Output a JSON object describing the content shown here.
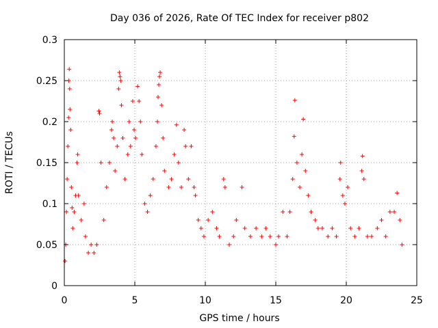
{
  "chart_data": {
    "type": "scatter",
    "title": "Day 036 of 2026, Rate Of TEC Index for receiver p802",
    "xlabel": "GPS time / hours",
    "ylabel": "ROTI / TECUs",
    "xlim": [
      0,
      25
    ],
    "ylim": [
      0,
      0.3
    ],
    "xticks": [
      0,
      5,
      10,
      15,
      20,
      25
    ],
    "xtick_labels": [
      "0",
      "5",
      "10",
      "15",
      "20",
      "25"
    ],
    "yticks": [
      0,
      0.05,
      0.1,
      0.15,
      0.2,
      0.25,
      0.3
    ],
    "ytick_labels": [
      "0",
      "0.05",
      "0.1",
      "0.15",
      "0.2",
      "0.25",
      "0.3"
    ],
    "grid": true,
    "marker": "+",
    "series": [
      {
        "name": "ROTI",
        "color": "#ff0000",
        "points": [
          [
            0.05,
            0.03
          ],
          [
            0.1,
            0.05
          ],
          [
            0.15,
            0.09
          ],
          [
            0.2,
            0.13
          ],
          [
            0.25,
            0.17
          ],
          [
            0.3,
            0.205
          ],
          [
            0.32,
            0.25
          ],
          [
            0.35,
            0.264
          ],
          [
            0.38,
            0.24
          ],
          [
            0.4,
            0.215
          ],
          [
            0.45,
            0.19
          ],
          [
            0.5,
            0.12
          ],
          [
            0.55,
            0.095
          ],
          [
            0.6,
            0.07
          ],
          [
            0.7,
            0.09
          ],
          [
            0.8,
            0.11
          ],
          [
            0.9,
            0.15
          ],
          [
            0.95,
            0.16
          ],
          [
            1.0,
            0.11
          ],
          [
            1.2,
            0.08
          ],
          [
            1.4,
            0.1
          ],
          [
            1.5,
            0.06
          ],
          [
            1.7,
            0.04
          ],
          [
            1.9,
            0.05
          ],
          [
            2.1,
            0.04
          ],
          [
            2.3,
            0.05
          ],
          [
            2.45,
            0.213
          ],
          [
            2.5,
            0.21
          ],
          [
            2.6,
            0.15
          ],
          [
            2.8,
            0.08
          ],
          [
            3.0,
            0.12
          ],
          [
            3.2,
            0.15
          ],
          [
            3.35,
            0.19
          ],
          [
            3.4,
            0.2
          ],
          [
            3.5,
            0.18
          ],
          [
            3.6,
            0.14
          ],
          [
            3.75,
            0.17
          ],
          [
            3.85,
            0.24
          ],
          [
            3.9,
            0.26
          ],
          [
            3.95,
            0.255
          ],
          [
            4.0,
            0.25
          ],
          [
            4.05,
            0.22
          ],
          [
            4.15,
            0.18
          ],
          [
            4.3,
            0.13
          ],
          [
            4.5,
            0.16
          ],
          [
            4.6,
            0.2
          ],
          [
            4.7,
            0.17
          ],
          [
            4.85,
            0.225
          ],
          [
            4.95,
            0.19
          ],
          [
            5.05,
            0.18
          ],
          [
            5.2,
            0.243
          ],
          [
            5.3,
            0.225
          ],
          [
            5.4,
            0.2
          ],
          [
            5.5,
            0.16
          ],
          [
            5.7,
            0.1
          ],
          [
            5.9,
            0.09
          ],
          [
            6.1,
            0.11
          ],
          [
            6.3,
            0.13
          ],
          [
            6.5,
            0.17
          ],
          [
            6.6,
            0.2
          ],
          [
            6.65,
            0.23
          ],
          [
            6.7,
            0.245
          ],
          [
            6.75,
            0.255
          ],
          [
            6.8,
            0.26
          ],
          [
            6.9,
            0.22
          ],
          [
            7.0,
            0.18
          ],
          [
            7.1,
            0.14
          ],
          [
            7.4,
            0.12
          ],
          [
            7.6,
            0.13
          ],
          [
            7.8,
            0.16
          ],
          [
            7.95,
            0.196
          ],
          [
            8.1,
            0.15
          ],
          [
            8.3,
            0.12
          ],
          [
            8.5,
            0.19
          ],
          [
            8.6,
            0.17
          ],
          [
            8.8,
            0.13
          ],
          [
            9.0,
            0.17
          ],
          [
            9.2,
            0.12
          ],
          [
            9.3,
            0.11
          ],
          [
            9.5,
            0.08
          ],
          [
            9.7,
            0.07
          ],
          [
            9.9,
            0.06
          ],
          [
            10.2,
            0.08
          ],
          [
            10.5,
            0.09
          ],
          [
            10.8,
            0.07
          ],
          [
            11.0,
            0.06
          ],
          [
            11.3,
            0.13
          ],
          [
            11.4,
            0.12
          ],
          [
            11.7,
            0.05
          ],
          [
            12.0,
            0.06
          ],
          [
            12.2,
            0.08
          ],
          [
            12.6,
            0.12
          ],
          [
            12.8,
            0.07
          ],
          [
            13.2,
            0.06
          ],
          [
            13.6,
            0.07
          ],
          [
            14.0,
            0.06
          ],
          [
            14.3,
            0.07
          ],
          [
            14.6,
            0.06
          ],
          [
            15.0,
            0.05
          ],
          [
            15.2,
            0.06
          ],
          [
            15.5,
            0.09
          ],
          [
            15.8,
            0.06
          ],
          [
            16.0,
            0.09
          ],
          [
            16.2,
            0.13
          ],
          [
            16.3,
            0.182
          ],
          [
            16.35,
            0.226
          ],
          [
            16.5,
            0.15
          ],
          [
            16.7,
            0.12
          ],
          [
            16.85,
            0.16
          ],
          [
            16.95,
            0.203
          ],
          [
            17.1,
            0.14
          ],
          [
            17.3,
            0.11
          ],
          [
            17.5,
            0.09
          ],
          [
            17.8,
            0.08
          ],
          [
            18.0,
            0.07
          ],
          [
            18.3,
            0.07
          ],
          [
            18.7,
            0.06
          ],
          [
            19.0,
            0.07
          ],
          [
            19.3,
            0.06
          ],
          [
            19.55,
            0.13
          ],
          [
            19.6,
            0.15
          ],
          [
            19.75,
            0.11
          ],
          [
            19.9,
            0.1
          ],
          [
            20.1,
            0.12
          ],
          [
            20.3,
            0.07
          ],
          [
            20.6,
            0.06
          ],
          [
            20.9,
            0.07
          ],
          [
            21.1,
            0.14
          ],
          [
            21.15,
            0.158
          ],
          [
            21.25,
            0.13
          ],
          [
            21.5,
            0.06
          ],
          [
            21.8,
            0.06
          ],
          [
            22.2,
            0.07
          ],
          [
            22.5,
            0.08
          ],
          [
            22.8,
            0.06
          ],
          [
            23.1,
            0.09
          ],
          [
            23.4,
            0.09
          ],
          [
            23.6,
            0.113
          ],
          [
            23.8,
            0.08
          ],
          [
            23.95,
            0.05
          ]
        ]
      }
    ]
  }
}
